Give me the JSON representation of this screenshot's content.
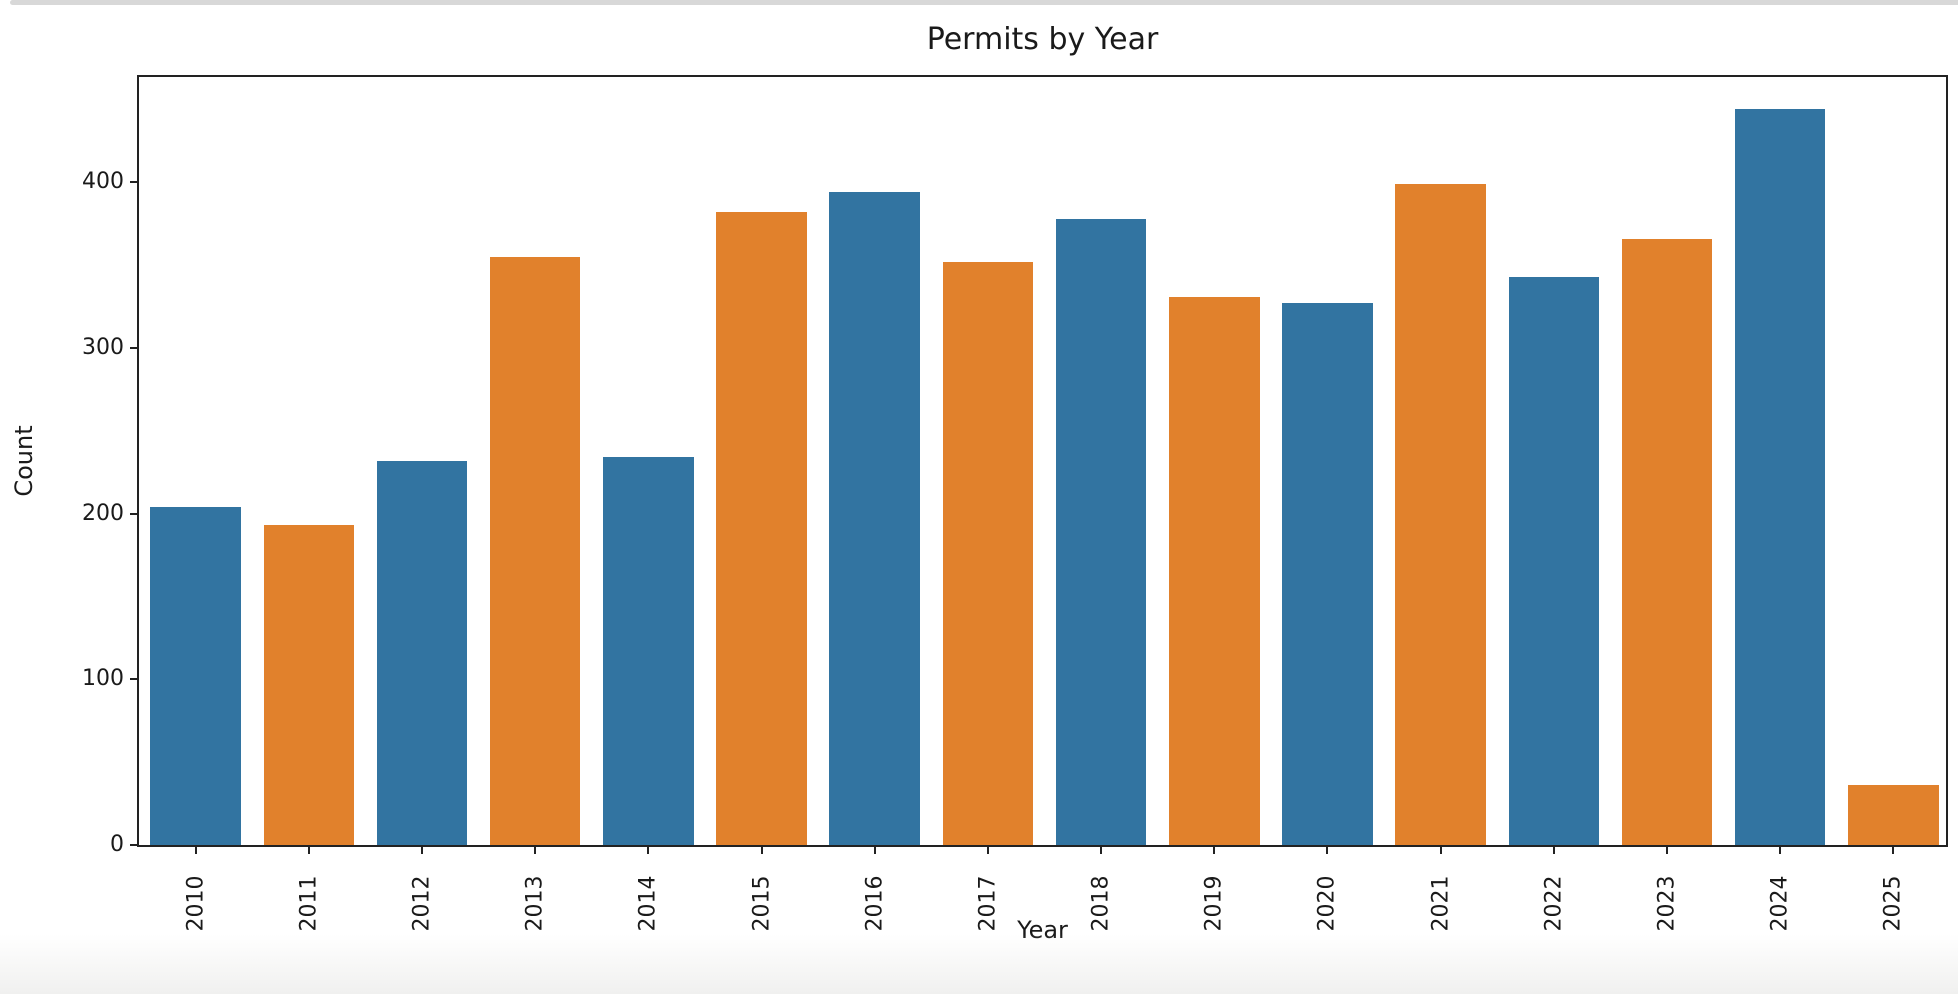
{
  "page": {
    "background_color": "#ffffff",
    "top_rule_color": "#d8d8d8",
    "bottom_fade_color": "#f0f0ef"
  },
  "chart_data": {
    "type": "bar",
    "title": "Permits by Year",
    "xlabel": "Year",
    "ylabel": "Count",
    "categories": [
      "2010",
      "2011",
      "2012",
      "2013",
      "2014",
      "2015",
      "2016",
      "2017",
      "2018",
      "2019",
      "2020",
      "2021",
      "2022",
      "2023",
      "2024",
      "2025"
    ],
    "values": [
      204,
      193,
      232,
      355,
      234,
      382,
      394,
      352,
      378,
      331,
      327,
      399,
      343,
      366,
      444,
      36
    ],
    "bar_colors_alternating": [
      "#3274A1",
      "#E1812C"
    ],
    "spine_color": "#222222",
    "text_color": "#1a1a1a",
    "ylim": [
      0,
      466
    ],
    "yticks": [
      0,
      100,
      200,
      300,
      400
    ],
    "x_tick_rotation": 90,
    "grid": false,
    "legend": "none",
    "bar_width_fraction": 0.8
  }
}
